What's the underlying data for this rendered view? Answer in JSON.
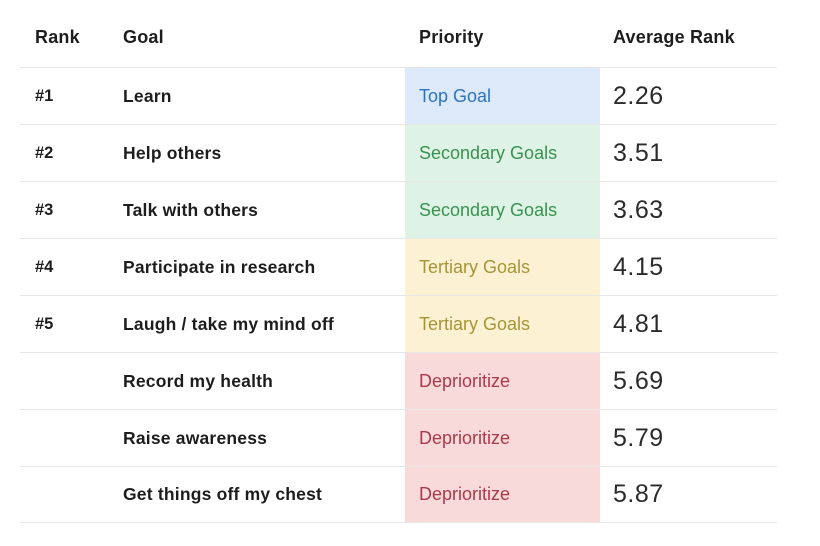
{
  "table": {
    "headers": {
      "rank": "Rank",
      "goal": "Goal",
      "priority": "Priority",
      "average_rank": "Average Rank"
    },
    "rows": [
      {
        "rank": "#1",
        "goal": "Learn",
        "priority": "Top Goal",
        "level": "top",
        "average_rank": "2.26"
      },
      {
        "rank": "#2",
        "goal": "Help others",
        "priority": "Secondary Goals",
        "level": "secondary",
        "average_rank": "3.51"
      },
      {
        "rank": "#3",
        "goal": "Talk with others",
        "priority": "Secondary Goals",
        "level": "secondary",
        "average_rank": "3.63"
      },
      {
        "rank": "#4",
        "goal": "Participate in research",
        "priority": "Tertiary Goals",
        "level": "tertiary",
        "average_rank": "4.15"
      },
      {
        "rank": "#5",
        "goal": "Laugh / take my mind off",
        "priority": "Tertiary Goals",
        "level": "tertiary",
        "average_rank": "4.81"
      },
      {
        "rank": "",
        "goal": "Record my health",
        "priority": "Deprioritize",
        "level": "deprioritize",
        "average_rank": "5.69"
      },
      {
        "rank": "",
        "goal": "Raise awareness",
        "priority": "Deprioritize",
        "level": "deprioritize",
        "average_rank": "5.79"
      },
      {
        "rank": "",
        "goal": "Get things off my chest",
        "priority": "Deprioritize",
        "level": "deprioritize",
        "average_rank": "5.87"
      }
    ],
    "priority_styles": {
      "top": {
        "bg": "#dbe9f8",
        "fg": "#2d74bd"
      },
      "secondary": {
        "bg": "#dff2e6",
        "fg": "#37934f"
      },
      "tertiary": {
        "bg": "#fcf2d3",
        "fg": "#a69434"
      },
      "deprioritize": {
        "bg": "#f9dadb",
        "fg": "#ab3a49"
      }
    },
    "colors": {
      "border": "#e7e7e7",
      "text": "#1d1d1d"
    }
  }
}
